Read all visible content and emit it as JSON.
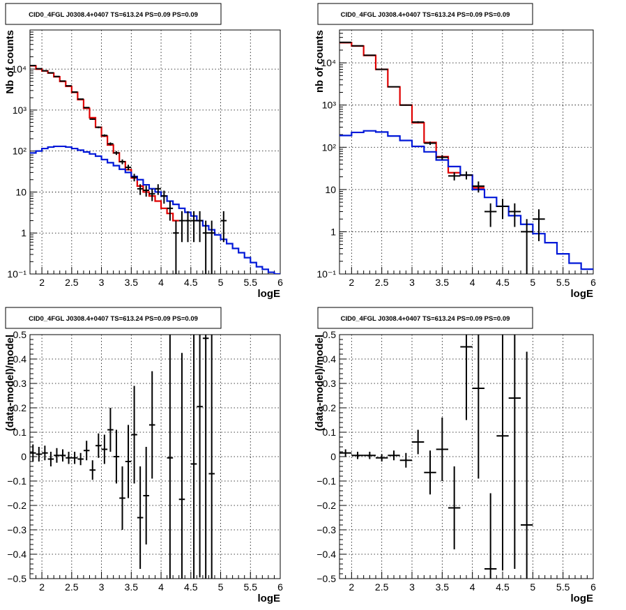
{
  "colors": {
    "data": "#000000",
    "total_model": "#e00000",
    "source_model": "#0018d8",
    "grid": "#000000",
    "frame": "#000000"
  },
  "panels": [
    {
      "title": "CID0_4FGL J0308.4+0407 TS=613.24 PS=0.09 PS=0.09",
      "xlabel": "logE",
      "ylabel": "Nb of counts",
      "x_ticks": [
        "2",
        "2.5",
        "3",
        "3.5",
        "4",
        "4.5",
        "5",
        "5.5",
        "6"
      ],
      "y_ticks": [
        "10⁻¹",
        "1",
        "10",
        "10²",
        "10³",
        "10⁴"
      ]
    },
    {
      "title": "CID0_4FGL J0308.4+0407 TS=613.24 PS=0.09 PS=0.09",
      "xlabel": "logE",
      "ylabel": "nb of counts",
      "x_ticks": [
        "2",
        "2.5",
        "3",
        "3.5",
        "4",
        "4.5",
        "5",
        "5.5",
        "6"
      ],
      "y_ticks": [
        "10⁻¹",
        "1",
        "10",
        "10²",
        "10³",
        "10⁴"
      ]
    },
    {
      "title": "CID0_4FGL J0308.4+0407 TS=613.24 PS=0.09 PS=0.09",
      "xlabel": "logE",
      "ylabel": "(data-model)/model",
      "x_ticks": [
        "2",
        "2.5",
        "3",
        "3.5",
        "4",
        "4.5",
        "5",
        "5.5",
        "6"
      ],
      "y_ticks": [
        "−0.5",
        "−0.4",
        "−0.3",
        "−0.2",
        "−0.1",
        "0",
        "0.1",
        "0.2",
        "0.3",
        "0.4",
        "0.5"
      ]
    },
    {
      "title": "CID0_4FGL J0308.4+0407 TS=613.24 PS=0.09 PS=0.09",
      "xlabel": "logE",
      "ylabel": "(data-model)/model",
      "x_ticks": [
        "2",
        "2.5",
        "3",
        "3.5",
        "4",
        "4.5",
        "5",
        "5.5",
        "6"
      ],
      "y_ticks": [
        "−0.5",
        "−0.4",
        "−0.3",
        "−0.2",
        "−0.1",
        "0",
        "0.1",
        "0.2",
        "0.3",
        "0.4",
        "0.5"
      ]
    }
  ],
  "chart_data": [
    {
      "type": "line",
      "title": "CID0_4FGL J0308.4+0407 TS=613.24 PS=0.09 PS=0.09",
      "xlabel": "logE",
      "ylabel": "Nb of counts",
      "log_y": true,
      "xlim": [
        1.8,
        6
      ],
      "ylim": [
        0.1,
        90000
      ],
      "grid": true,
      "bin_width": 0.1,
      "series": [
        {
          "role": "total_model",
          "style": "step",
          "x": [
            1.8,
            1.9,
            2.0,
            2.1,
            2.2,
            2.3,
            2.4,
            2.5,
            2.6,
            2.7,
            2.8,
            2.9,
            3.0,
            3.1,
            3.2,
            3.3,
            3.4,
            3.5,
            3.6,
            3.7,
            3.8,
            3.9,
            4.0,
            4.1,
            4.2
          ],
          "y": [
            12000,
            10000,
            9000,
            8000,
            6500,
            5000,
            3800,
            2700,
            1800,
            1100,
            650,
            380,
            230,
            140,
            90,
            55,
            35,
            22,
            14,
            10,
            8,
            6,
            4,
            3,
            2
          ]
        },
        {
          "role": "source_model",
          "style": "step",
          "x": [
            1.8,
            1.9,
            2.0,
            2.1,
            2.2,
            2.3,
            2.4,
            2.5,
            2.6,
            2.7,
            2.8,
            2.9,
            3.0,
            3.1,
            3.2,
            3.3,
            3.4,
            3.5,
            3.6,
            3.7,
            3.8,
            3.9,
            4.0,
            4.1,
            4.2,
            4.3,
            4.4,
            4.5,
            4.6,
            4.7,
            4.8,
            4.9,
            5.0,
            5.1,
            5.2,
            5.3,
            5.4,
            5.5,
            5.6,
            5.7,
            5.8,
            5.9
          ],
          "y": [
            90,
            100,
            115,
            125,
            130,
            130,
            125,
            115,
            105,
            95,
            85,
            75,
            62,
            52,
            44,
            36,
            30,
            24,
            20,
            15,
            12,
            10,
            8,
            6,
            5,
            4,
            3.2,
            2.6,
            2,
            1.5,
            1.2,
            0.9,
            0.7,
            0.55,
            0.42,
            0.33,
            0.25,
            0.19,
            0.15,
            0.13,
            0.11,
            0.1
          ]
        },
        {
          "role": "data",
          "style": "errorbar",
          "x": [
            1.85,
            1.95,
            2.05,
            2.15,
            2.25,
            2.35,
            2.45,
            2.55,
            2.65,
            2.75,
            2.85,
            2.95,
            3.05,
            3.15,
            3.25,
            3.35,
            3.45,
            3.55,
            3.65,
            3.75,
            3.85,
            3.95,
            4.05,
            4.15,
            4.25,
            4.35,
            4.45,
            4.55,
            4.65,
            4.75,
            4.85,
            4.95,
            5.05
          ],
          "y": [
            12200,
            10200,
            9100,
            8100,
            6600,
            5100,
            3900,
            2750,
            1850,
            1150,
            600,
            380,
            240,
            150,
            90,
            55,
            40,
            23,
            12,
            11,
            9,
            12,
            8,
            4,
            1,
            2,
            2,
            2,
            2,
            1,
            1,
            0,
            2
          ],
          "err_low": [
            110,
            100,
            95,
            90,
            81,
            71,
            62,
            52,
            43,
            34,
            24,
            19,
            15,
            12,
            9.5,
            7.4,
            6.3,
            4.8,
            3.5,
            3.3,
            3,
            3.5,
            2.8,
            2,
            1,
            1.4,
            1.4,
            1.4,
            1.4,
            1,
            1,
            0,
            1.4
          ],
          "err_high": [
            110,
            100,
            95,
            90,
            81,
            71,
            62,
            52,
            43,
            34,
            24,
            19,
            15,
            12,
            9.5,
            7.4,
            6.3,
            4.8,
            3.5,
            3.3,
            3,
            3.5,
            2.8,
            2,
            1,
            1.4,
            1.4,
            1.4,
            1.4,
            1,
            1,
            0,
            1.4
          ]
        }
      ]
    },
    {
      "type": "line",
      "title": "CID0_4FGL J0308.4+0407 TS=613.24 PS=0.09 PS=0.09",
      "xlabel": "logE",
      "ylabel": "nb of counts",
      "log_y": true,
      "xlim": [
        1.8,
        6
      ],
      "ylim": [
        0.1,
        60000
      ],
      "grid": true,
      "bin_width": 0.2,
      "series": [
        {
          "role": "total_model",
          "style": "step",
          "x": [
            1.8,
            2.0,
            2.2,
            2.4,
            2.6,
            2.8,
            3.0,
            3.2,
            3.4,
            3.6,
            3.8,
            4.0
          ],
          "y": [
            30000,
            25000,
            15000,
            7000,
            2700,
            1000,
            380,
            130,
            60,
            25,
            22,
            11
          ]
        },
        {
          "role": "source_model",
          "style": "step",
          "x": [
            1.8,
            2.0,
            2.2,
            2.4,
            2.6,
            2.8,
            3.0,
            3.2,
            3.4,
            3.6,
            3.8,
            4.0,
            4.2,
            4.4,
            4.6,
            4.8,
            5.0,
            5.2,
            5.4,
            5.6,
            5.8
          ],
          "y": [
            190,
            225,
            245,
            230,
            185,
            145,
            105,
            78,
            50,
            35,
            22,
            10,
            6.5,
            4,
            2.4,
            1.5,
            0.9,
            0.55,
            0.3,
            0.18,
            0.13
          ]
        },
        {
          "role": "data",
          "style": "errorbar",
          "x": [
            1.9,
            2.1,
            2.3,
            2.5,
            2.7,
            2.9,
            3.1,
            3.3,
            3.5,
            3.7,
            3.9,
            4.1,
            4.3,
            4.5,
            4.7,
            4.9,
            5.1
          ],
          "y": [
            30500,
            25300,
            15100,
            7000,
            2710,
            1000,
            395,
            125,
            58,
            21,
            22,
            12,
            3,
            4,
            3,
            1,
            2
          ],
          "err_low": [
            175,
            159,
            123,
            84,
            52,
            32,
            20,
            11,
            7.6,
            4.6,
            4.7,
            3.5,
            1.7,
            2,
            1.7,
            1,
            1.4
          ],
          "err_high": [
            175,
            159,
            123,
            84,
            52,
            32,
            20,
            11,
            7.6,
            4.6,
            4.7,
            3.5,
            1.7,
            2,
            1.7,
            1,
            1.4
          ]
        }
      ]
    },
    {
      "type": "scatter",
      "title": "CID0_4FGL J0308.4+0407 TS=613.24 PS=0.09 PS=0.09",
      "xlabel": "logE",
      "ylabel": "(data-model)/model",
      "xlim": [
        1.8,
        6
      ],
      "ylim": [
        -0.5,
        0.5
      ],
      "grid": true,
      "bin_width": 0.1,
      "series": [
        {
          "role": "data",
          "style": "errorbar",
          "x": [
            1.85,
            1.95,
            2.05,
            2.15,
            2.25,
            2.35,
            2.45,
            2.55,
            2.65,
            2.75,
            2.85,
            2.95,
            3.05,
            3.15,
            3.25,
            3.35,
            3.45,
            3.55,
            3.65,
            3.75,
            3.85,
            4.15,
            4.35,
            4.55,
            4.65,
            4.75,
            4.85
          ],
          "y": [
            0.015,
            0.01,
            0.015,
            -0.01,
            0.005,
            0.005,
            -0.005,
            -0.005,
            -0.01,
            0.025,
            -0.055,
            0.045,
            0.03,
            0.11,
            0,
            -0.17,
            -0.02,
            0.09,
            -0.25,
            -0.16,
            0.13,
            -0.005,
            -0.175,
            -0.03,
            0.205,
            0.485,
            -0.07
          ],
          "err_low": [
            0.035,
            0.03,
            0.03,
            0.03,
            0.03,
            0.025,
            0.025,
            0.025,
            0.025,
            0.04,
            0.04,
            0.05,
            0.06,
            0.09,
            0.11,
            0.13,
            0.15,
            0.2,
            0.21,
            0.2,
            0.22,
            0.6,
            0.6,
            0.7,
            0.7,
            1.0,
            0.7
          ],
          "err_high": [
            0.035,
            0.03,
            0.03,
            0.03,
            0.03,
            0.025,
            0.025,
            0.025,
            0.025,
            0.04,
            0.04,
            0.05,
            0.06,
            0.09,
            0.11,
            0.13,
            0.15,
            0.2,
            0.21,
            0.2,
            0.22,
            0.6,
            0.6,
            0.7,
            0.7,
            1.0,
            0.7
          ]
        }
      ]
    },
    {
      "type": "scatter",
      "title": "CID0_4FGL J0308.4+0407 TS=613.24 PS=0.09 PS=0.09",
      "xlabel": "logE",
      "ylabel": "(data-model)/model",
      "xlim": [
        1.8,
        6
      ],
      "ylim": [
        -0.5,
        0.5
      ],
      "grid": true,
      "bin_width": 0.2,
      "series": [
        {
          "role": "data",
          "style": "errorbar",
          "x": [
            1.9,
            2.1,
            2.3,
            2.5,
            2.7,
            2.9,
            3.1,
            3.3,
            3.5,
            3.7,
            3.9,
            4.1,
            4.3,
            4.5,
            4.7,
            4.9
          ],
          "y": [
            0.015,
            0.005,
            0.005,
            -0.005,
            0.005,
            -0.015,
            0.06,
            -0.065,
            0.03,
            -0.21,
            0.45,
            0.28,
            -0.46,
            0.085,
            0.24,
            -0.28
          ],
          "err_low": [
            0.015,
            0.015,
            0.015,
            0.015,
            0.02,
            0.03,
            0.05,
            0.09,
            0.13,
            0.17,
            0.3,
            0.37,
            0.31,
            0.55,
            0.7,
            0.7
          ],
          "err_high": [
            0.015,
            0.015,
            0.015,
            0.015,
            0.02,
            0.03,
            0.05,
            0.09,
            0.13,
            0.17,
            0.3,
            0.37,
            0.31,
            0.55,
            0.7,
            0.71
          ]
        }
      ]
    }
  ]
}
